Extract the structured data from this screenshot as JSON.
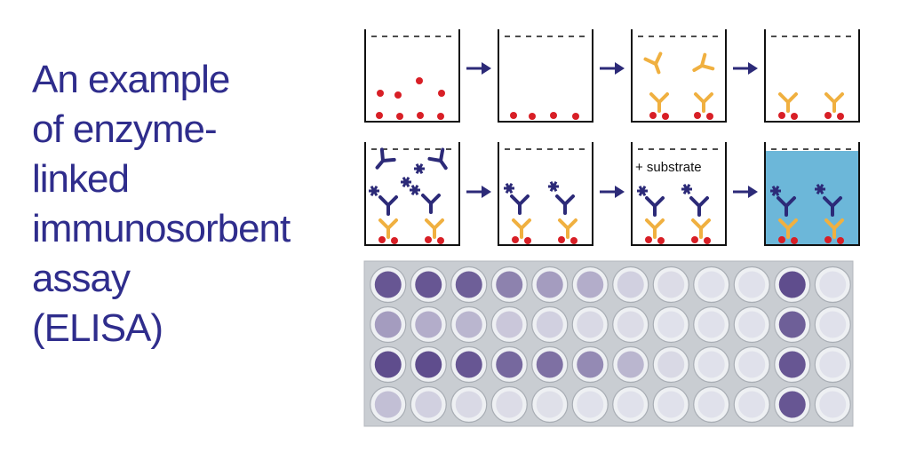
{
  "title_lines": [
    "An example",
    "of enzyme-",
    "linked",
    "immunosorbent",
    "assay",
    "(ELISA)"
  ],
  "substrate_label": "+ substrate",
  "colors": {
    "title": "#2f2d8c",
    "antigen": "#d81f26",
    "primary_antibody": "#f0b040",
    "secondary_antibody": "#2c2a78",
    "arrow": "#2c2a78",
    "filled_well": "#6cb7d9",
    "plate_background": "#c9cdd2"
  },
  "icons": [
    "arrow-right-icon",
    "antibody-icon",
    "enzyme-asterisk-icon",
    "antigen-dot-icon"
  ],
  "plate": {
    "rows": 4,
    "columns": 12,
    "intensity": [
      [
        0.85,
        0.85,
        0.8,
        0.6,
        0.45,
        0.35,
        0.15,
        0.08,
        0.05,
        0.05,
        0.9,
        0.05
      ],
      [
        0.45,
        0.35,
        0.3,
        0.2,
        0.15,
        0.1,
        0.08,
        0.05,
        0.05,
        0.05,
        0.8,
        0.05
      ],
      [
        0.9,
        0.9,
        0.85,
        0.75,
        0.7,
        0.55,
        0.3,
        0.1,
        0.05,
        0.05,
        0.85,
        0.05
      ],
      [
        0.25,
        0.15,
        0.1,
        0.08,
        0.06,
        0.05,
        0.05,
        0.05,
        0.05,
        0.05,
        0.85,
        0.05
      ]
    ]
  }
}
